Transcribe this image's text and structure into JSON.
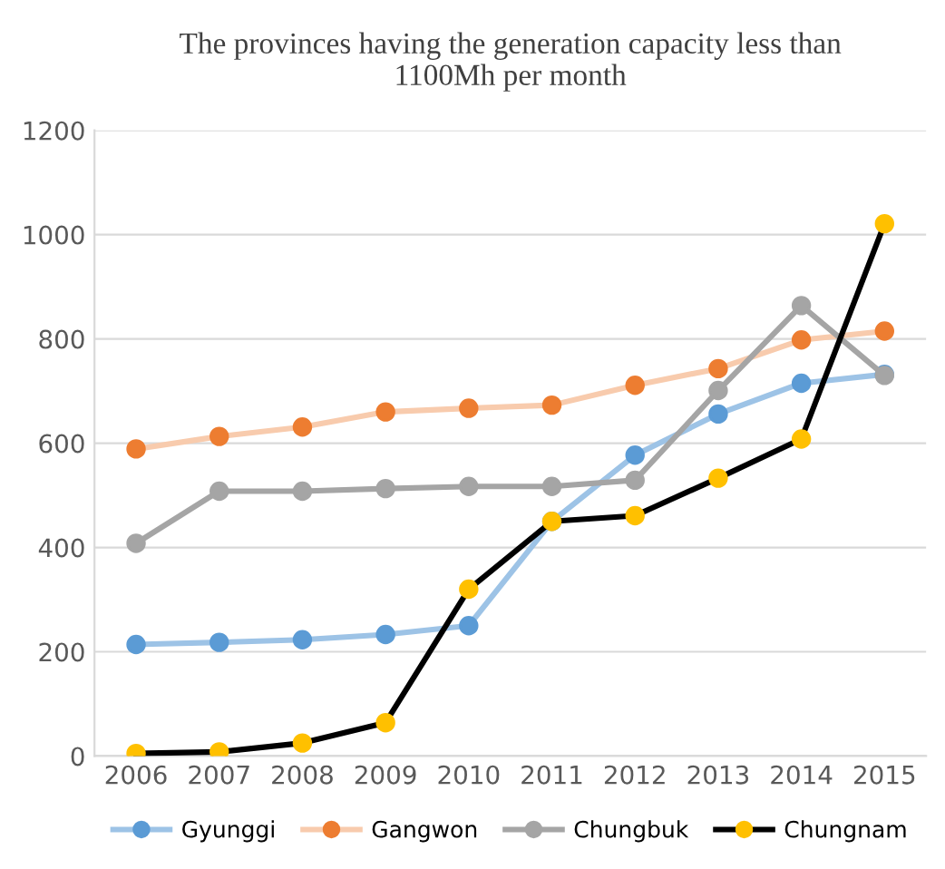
{
  "chart_data": {
    "type": "line",
    "title": "The provinces having the generation capacity less than\n1100Mh per month",
    "categories": [
      "2006",
      "2007",
      "2008",
      "2009",
      "2010",
      "2011",
      "2012",
      "2013",
      "2014",
      "2015"
    ],
    "series": [
      {
        "name": "Gyunggi",
        "color": "#9dc3e6",
        "colors": [
          "#5b9bd5",
          "#5b9bd5",
          "#5b9bd5",
          "#5b9bd5",
          "#5b9bd5",
          "#5b9bd5",
          "#5b9bd5",
          "#5b9bd5",
          "#5b9bd5",
          "#5b9bd5"
        ],
        "values": [
          214,
          218,
          223,
          233,
          250,
          450,
          577,
          656,
          715,
          732
        ]
      },
      {
        "name": "Gangwon",
        "color": "#f8cbad",
        "colors": [
          "#ed7d31",
          "#ed7d31",
          "#ed7d31",
          "#ed7d31",
          "#ed7d31",
          "#ed7d31",
          "#ed7d31",
          "#ed7d31",
          "#ed7d31",
          "#ed7d31"
        ],
        "values": [
          589,
          613,
          631,
          660,
          667,
          673,
          711,
          743,
          798,
          815
        ]
      },
      {
        "name": "Chungbuk",
        "color": "#a5a5a5",
        "colors": [
          "#a5a5a5",
          "#a5a5a5",
          "#a5a5a5",
          "#a5a5a5",
          "#a5a5a5",
          "#a5a5a5",
          "#a5a5a5",
          "#a5a5a5",
          "#a5a5a5",
          "#a5a5a5"
        ],
        "values": [
          408,
          508,
          508,
          513,
          517,
          517,
          529,
          701,
          864,
          730
        ]
      },
      {
        "name": "Chungnam",
        "color": "#000000",
        "colors": [
          "#ffc000",
          "#ffc000",
          "#ffc000",
          "#ffc000",
          "#ffc000",
          "#ffc000",
          "#ffc000",
          "#ffc000",
          "#ffc000",
          "#ffc000"
        ],
        "values": [
          5,
          8,
          25,
          64,
          320,
          450,
          461,
          533,
          608,
          1021
        ]
      }
    ],
    "ylim": [
      0,
      1200
    ],
    "yticks": [
      0,
      200,
      400,
      600,
      800,
      1000,
      1200
    ],
    "grid": "y",
    "legend": "bottom",
    "marker": "circle",
    "line_style": "solid"
  }
}
